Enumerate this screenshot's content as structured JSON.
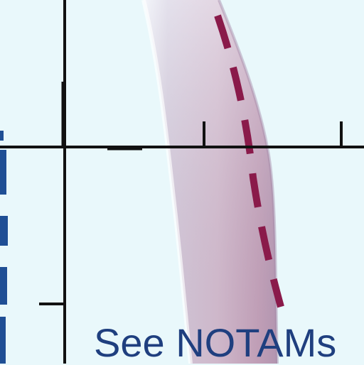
{
  "chart": {
    "notam_text": "See NOTAMs"
  },
  "colors": {
    "background": "#e9f8fb",
    "airspace_fill": "#d9c6d6",
    "airspace_edge": "#b9a6bd",
    "centerline": "#8a1a4a",
    "axis_lines": "#111111",
    "boundary_blue": "#1f4f95",
    "label_text": "#1f3f7f"
  },
  "icons": {
    "notam_marker": "airspace-corridor",
    "left_boundary": "dashed-boundary-line"
  }
}
